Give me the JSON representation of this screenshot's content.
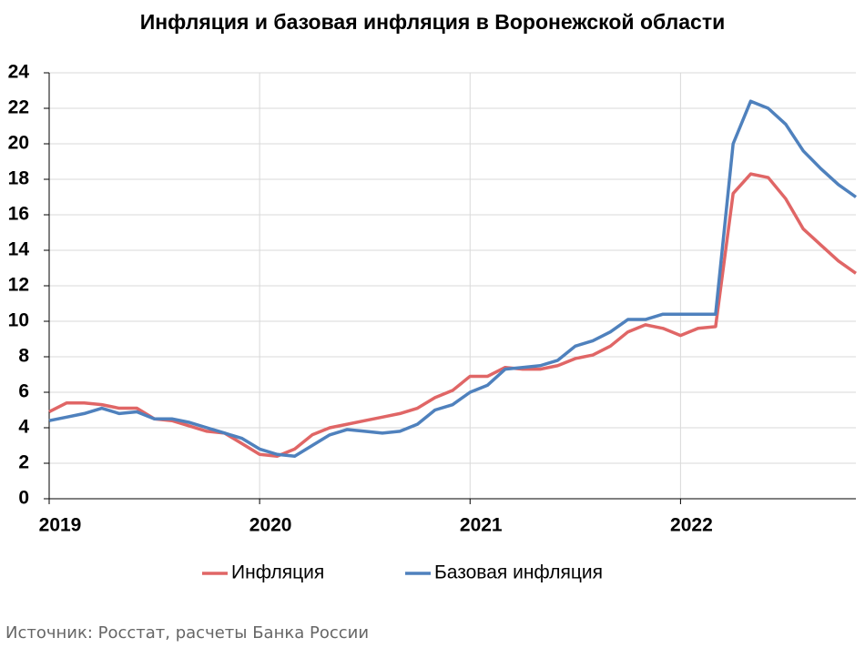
{
  "chart_data": {
    "type": "line",
    "title": "Инфляция и базовая инфляция в Воронежской области",
    "categories": [
      "2019",
      null,
      null,
      null,
      null,
      null,
      null,
      null,
      null,
      null,
      null,
      null,
      "2020",
      null,
      null,
      null,
      null,
      null,
      null,
      null,
      null,
      null,
      null,
      null,
      "2021",
      null,
      null,
      null,
      null,
      null,
      null,
      null,
      null,
      null,
      null,
      null,
      "2022",
      null,
      null,
      null,
      null,
      null,
      null,
      null,
      null,
      null,
      null
    ],
    "series": [
      {
        "name": "Инфляция",
        "color": "#e06666",
        "values": [
          4.9,
          5.4,
          5.4,
          5.3,
          5.1,
          5.1,
          4.5,
          4.4,
          4.1,
          3.8,
          3.7,
          3.1,
          2.5,
          2.4,
          2.8,
          3.6,
          4.0,
          4.2,
          4.4,
          4.6,
          4.8,
          5.1,
          5.7,
          6.1,
          6.9,
          6.9,
          7.4,
          7.3,
          7.3,
          7.5,
          7.9,
          8.1,
          8.6,
          9.4,
          9.8,
          9.6,
          9.2,
          9.6,
          9.7,
          17.2,
          18.3,
          18.1,
          16.9,
          15.2,
          14.3,
          13.4,
          12.7
        ]
      },
      {
        "name": "Базовая инфляция",
        "color": "#4f81bd",
        "values": [
          4.4,
          4.6,
          4.8,
          5.1,
          4.8,
          4.9,
          4.5,
          4.5,
          4.3,
          4.0,
          3.7,
          3.4,
          2.8,
          2.5,
          2.4,
          3.0,
          3.6,
          3.9,
          3.8,
          3.7,
          3.8,
          4.2,
          5.0,
          5.3,
          6.0,
          6.4,
          7.3,
          7.4,
          7.5,
          7.8,
          8.6,
          8.9,
          9.4,
          10.1,
          10.1,
          10.4,
          10.4,
          10.4,
          10.4,
          20.0,
          22.4,
          22.0,
          21.1,
          19.6,
          18.6,
          17.7,
          17.0
        ]
      }
    ],
    "ylim": [
      0,
      24
    ],
    "yticks": [
      0,
      2,
      4,
      6,
      8,
      10,
      12,
      14,
      16,
      18,
      20,
      22,
      24
    ],
    "grid": true,
    "legend": "bottom",
    "source": "Источник: Росстат, расчеты Банка России"
  }
}
